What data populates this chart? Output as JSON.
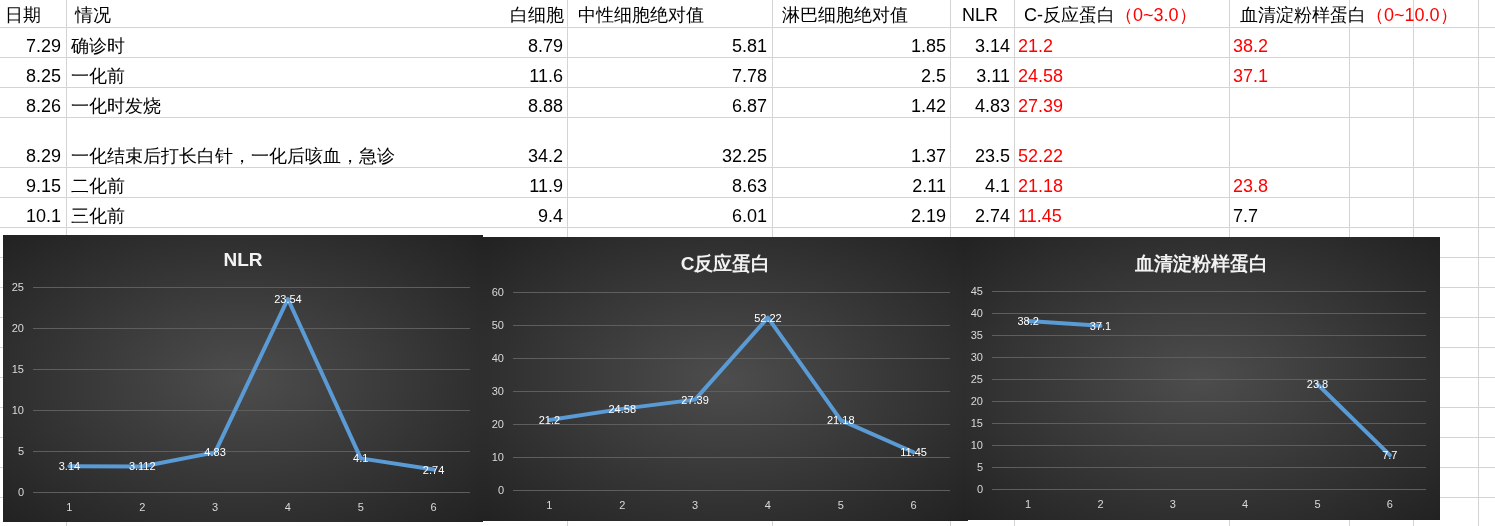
{
  "chart_data": [
    {
      "type": "other",
      "categories": [
        "日期",
        "情况",
        "白细胞",
        "中性细胞绝对值",
        "淋巴细胞绝对值",
        "NLR",
        "C-反应蛋白（0~3.0）",
        "血清淀粉样蛋白（0~10.0）"
      ],
      "cell_labels": [
        [
          "7.29",
          "确诊时",
          "8.79",
          "5.81",
          "1.85",
          "3.14",
          "21.2",
          "38.2"
        ],
        [
          "8.25",
          "一化前",
          "11.6",
          "7.78",
          "2.5",
          "3.11",
          "24.58",
          "37.1"
        ],
        [
          "8.26",
          "一化时发烧",
          "8.88",
          "6.87",
          "1.42",
          "4.83",
          "27.39",
          null
        ],
        [
          "8.29",
          "一化结束后打长白针，一化后咳血，急诊",
          "34.2",
          "32.25",
          "1.37",
          "23.5",
          "52.22",
          null
        ],
        [
          "9.15",
          "二化前",
          "11.9",
          "8.63",
          "2.11",
          "4.1",
          "21.18",
          "23.8"
        ],
        [
          "10.1",
          "三化前",
          "9.4",
          "6.01",
          "2.19",
          "2.74",
          "11.45",
          "7.7"
        ]
      ],
      "colors": [
        [
          "#000000",
          "#000000",
          "#000000",
          "#000000",
          "#000000",
          "#000000",
          "#ff0000",
          "#ff0000"
        ],
        [
          "#000000",
          "#000000",
          "#000000",
          "#000000",
          "#000000",
          "#000000",
          "#ff0000",
          "#ff0000"
        ],
        [
          "#000000",
          "#000000",
          "#000000",
          "#000000",
          "#000000",
          "#000000",
          "#ff0000",
          null
        ],
        [
          "#000000",
          "#000000",
          "#000000",
          "#000000",
          "#000000",
          "#000000",
          "#ff0000",
          null
        ],
        [
          "#000000",
          "#000000",
          "#000000",
          "#000000",
          "#000000",
          "#000000",
          "#ff0000",
          "#ff0000"
        ],
        [
          "#000000",
          "#000000",
          "#000000",
          "#000000",
          "#000000",
          "#000000",
          "#ff0000",
          "#000000"
        ]
      ]
    },
    {
      "type": "line",
      "title": "NLR",
      "categories": [
        "1",
        "2",
        "3",
        "4",
        "5",
        "6"
      ],
      "series": [
        {
          "color": "#5b9bd5",
          "values": [
            3.14,
            3.112,
            4.83,
            23.54,
            4.1,
            2.74
          ]
        }
      ],
      "ylim": [
        0,
        25
      ],
      "yticks": [
        0,
        5,
        10,
        15,
        20,
        25
      ],
      "grid": "y",
      "data_labels": true
    },
    {
      "type": "line",
      "title": "C反应蛋白",
      "categories": [
        "1",
        "2",
        "3",
        "4",
        "5",
        "6"
      ],
      "series": [
        {
          "color": "#5b9bd5",
          "values": [
            21.2,
            24.58,
            27.39,
            52.22,
            21.18,
            11.45
          ]
        }
      ],
      "ylim": [
        0,
        60
      ],
      "yticks": [
        0,
        10,
        20,
        30,
        40,
        50,
        60
      ],
      "grid": "y",
      "data_labels": true
    },
    {
      "type": "line",
      "title": "血清淀粉样蛋白",
      "categories": [
        "1",
        "2",
        "3",
        "4",
        "5",
        "6"
      ],
      "series": [
        {
          "color": "#5b9bd5",
          "values": [
            38.2,
            37.1,
            null,
            null,
            23.8,
            7.7
          ]
        }
      ],
      "ylim": [
        0,
        45
      ],
      "yticks": [
        0,
        5,
        10,
        15,
        20,
        25,
        30,
        35,
        40,
        45
      ],
      "grid": "y",
      "data_labels": true
    }
  ]
}
